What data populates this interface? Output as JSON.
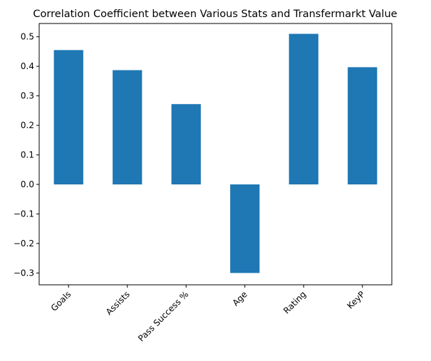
{
  "chart_data": {
    "type": "bar",
    "title": "Correlation Coefficient between Various Stats and Transfermarkt Value",
    "xlabel": "",
    "ylabel": "",
    "categories": [
      "Goals",
      "Assists",
      "Pass Success %",
      "Age",
      "Rating",
      "KeyP"
    ],
    "values": [
      0.455,
      0.387,
      0.272,
      -0.3,
      0.51,
      0.397
    ],
    "ylim": [
      -0.34,
      0.545
    ],
    "yticks": [
      -0.3,
      -0.2,
      -0.1,
      0.0,
      0.1,
      0.2,
      0.3,
      0.4,
      0.5
    ],
    "ytick_labels": [
      "−0.3",
      "−0.2",
      "−0.1",
      "0.0",
      "0.1",
      "0.2",
      "0.3",
      "0.4",
      "0.5"
    ],
    "xtick_rotation_deg": 45,
    "grid": false,
    "legend": "none",
    "bar_color": "#1f77b4"
  }
}
